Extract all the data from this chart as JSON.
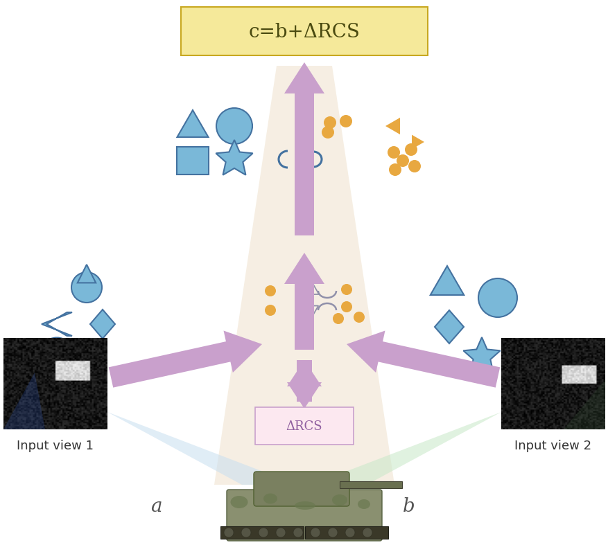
{
  "bg_color": "#ffffff",
  "title_box_color": "#f5e99a",
  "title_box_edge": "#c8a820",
  "title_text": "c=b+ΔRCS",
  "title_text_color": "#4a4a10",
  "beam_color": "#f5ede0",
  "arrow_color": "#c9a0cc",
  "delta_rcs_box_color": "#fce8f0",
  "delta_rcs_box_edge": "#c9a0cc",
  "delta_rcs_text": "ΔRCS",
  "blue_fill": "#7ab8d8",
  "blue_edge": "#4472a0",
  "orange_color": "#e8a840",
  "gray_color": "#9090aa",
  "label_a": "a",
  "label_b": "b",
  "label_view1": "Input view 1",
  "label_view2": "Input view 2"
}
